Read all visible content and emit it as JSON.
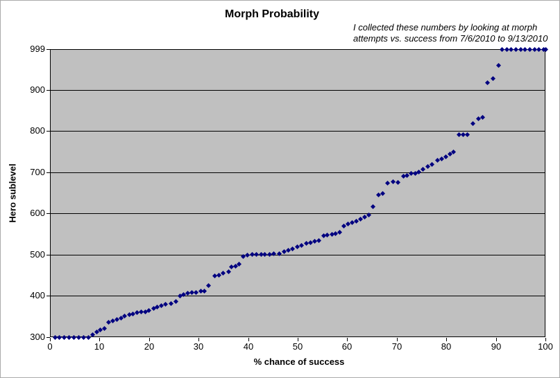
{
  "chart_data": {
    "type": "scatter",
    "title": "Morph Probability",
    "annotation_lines": [
      "I collected these numbers by looking at morph",
      "attempts vs. success from 7/6/2010 to 9/13/2010"
    ],
    "xlabel": "% chance of success",
    "ylabel": "Hero sublevel",
    "xlim": [
      0,
      100
    ],
    "ylim": [
      300,
      999
    ],
    "x_ticks": [
      0,
      10,
      20,
      30,
      40,
      50,
      60,
      70,
      80,
      90,
      100
    ],
    "y_tick_labels": [
      999,
      900,
      800,
      700,
      600,
      500,
      400,
      300
    ],
    "y_gridlines": [
      400,
      500,
      600,
      700,
      800,
      900
    ],
    "grid": "horizontal",
    "legend": "none",
    "plot_bg_color": "#c0c0c0",
    "gridline_color": "#000000",
    "marker_color": "#000080",
    "marker_shape": "diamond",
    "points": [
      [
        1.0,
        300
      ],
      [
        1.9,
        300
      ],
      [
        2.9,
        300
      ],
      [
        3.9,
        300
      ],
      [
        4.9,
        300
      ],
      [
        5.8,
        300
      ],
      [
        6.8,
        300
      ],
      [
        7.8,
        300
      ],
      [
        8.6,
        306
      ],
      [
        9.4,
        313
      ],
      [
        10.2,
        317
      ],
      [
        11.0,
        321
      ],
      [
        11.8,
        336
      ],
      [
        12.7,
        340
      ],
      [
        13.5,
        343
      ],
      [
        14.3,
        347
      ],
      [
        15.1,
        351
      ],
      [
        16.0,
        354
      ],
      [
        16.8,
        357
      ],
      [
        17.6,
        359
      ],
      [
        18.4,
        361
      ],
      [
        19.2,
        362
      ],
      [
        20.0,
        365
      ],
      [
        20.9,
        369
      ],
      [
        21.7,
        373
      ],
      [
        22.5,
        376
      ],
      [
        23.3,
        380
      ],
      [
        24.4,
        382
      ],
      [
        25.4,
        386
      ],
      [
        26.2,
        400
      ],
      [
        27.0,
        404
      ],
      [
        27.8,
        407
      ],
      [
        28.6,
        408
      ],
      [
        29.5,
        409
      ],
      [
        30.4,
        411
      ],
      [
        31.2,
        412
      ],
      [
        32.0,
        425
      ],
      [
        33.3,
        448
      ],
      [
        34.1,
        451
      ],
      [
        35.0,
        455
      ],
      [
        36.0,
        459
      ],
      [
        36.6,
        470
      ],
      [
        37.4,
        473
      ],
      [
        38.2,
        477
      ],
      [
        39.0,
        496
      ],
      [
        39.9,
        499
      ],
      [
        40.8,
        500
      ],
      [
        41.7,
        500
      ],
      [
        42.6,
        500
      ],
      [
        43.4,
        501
      ],
      [
        44.3,
        501
      ],
      [
        45.2,
        502
      ],
      [
        46.3,
        503
      ],
      [
        47.2,
        507
      ],
      [
        48.1,
        511
      ],
      [
        49.0,
        515
      ],
      [
        49.9,
        519
      ],
      [
        50.8,
        523
      ],
      [
        51.7,
        527
      ],
      [
        52.6,
        530
      ],
      [
        53.5,
        532
      ],
      [
        54.3,
        535
      ],
      [
        55.2,
        546
      ],
      [
        56.0,
        548
      ],
      [
        56.9,
        550
      ],
      [
        57.7,
        551
      ],
      [
        58.5,
        555
      ],
      [
        59.3,
        570
      ],
      [
        60.1,
        574
      ],
      [
        61.0,
        578
      ],
      [
        61.8,
        582
      ],
      [
        62.7,
        586
      ],
      [
        63.5,
        591
      ],
      [
        64.4,
        597
      ],
      [
        65.2,
        617
      ],
      [
        66.3,
        646
      ],
      [
        67.2,
        648
      ],
      [
        68.2,
        674
      ],
      [
        69.2,
        677
      ],
      [
        70.2,
        676
      ],
      [
        71.3,
        691
      ],
      [
        72.1,
        692
      ],
      [
        72.9,
        697
      ],
      [
        73.7,
        698
      ],
      [
        74.5,
        700
      ],
      [
        75.3,
        707
      ],
      [
        76.3,
        715
      ],
      [
        77.1,
        720
      ],
      [
        78.2,
        729
      ],
      [
        79.0,
        733
      ],
      [
        79.9,
        738
      ],
      [
        80.7,
        744
      ],
      [
        81.4,
        750
      ],
      [
        82.5,
        791
      ],
      [
        83.4,
        792
      ],
      [
        84.3,
        792
      ],
      [
        85.4,
        819
      ],
      [
        86.5,
        830
      ],
      [
        87.3,
        834
      ],
      [
        88.3,
        917
      ],
      [
        89.4,
        928
      ],
      [
        90.5,
        959
      ],
      [
        91.3,
        999
      ],
      [
        92.2,
        999
      ],
      [
        93.1,
        999
      ],
      [
        94.1,
        999
      ],
      [
        95.0,
        999
      ],
      [
        95.9,
        999
      ],
      [
        96.9,
        999
      ],
      [
        97.8,
        999
      ],
      [
        98.7,
        999
      ],
      [
        99.7,
        999
      ],
      [
        100.0,
        999
      ]
    ]
  }
}
